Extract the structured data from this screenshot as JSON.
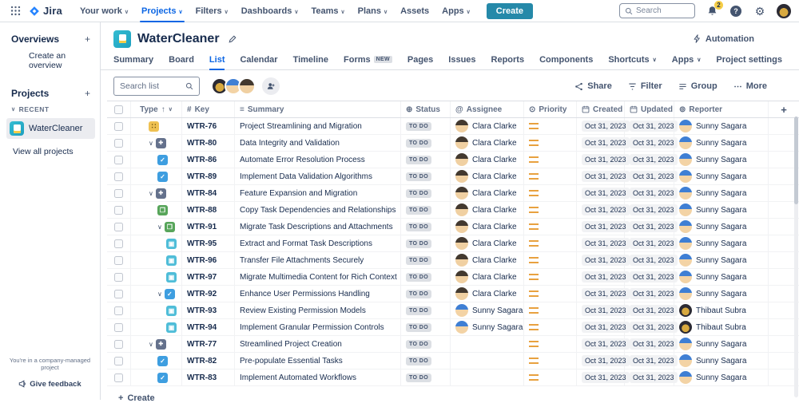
{
  "colors": {
    "create_button": "#2589A9",
    "badge_notification": "#F5CD47",
    "status_pill_bg": "#DCDFE4",
    "status_pill_text": "#44546F",
    "priority_medium": "#E8A13F",
    "type_task": "#3E9EE0",
    "type_story": "#57A55A",
    "type_subtask": "#4FBDD8",
    "type_feature": "#64718C",
    "type_project": "#EFC152"
  },
  "top_nav": {
    "logo_text": "Jira",
    "items": [
      {
        "label": "Your work",
        "dropdown": true
      },
      {
        "label": "Projects",
        "dropdown": true
      },
      {
        "label": "Filters",
        "dropdown": true
      },
      {
        "label": "Dashboards",
        "dropdown": true
      },
      {
        "label": "Teams",
        "dropdown": true
      },
      {
        "label": "Plans",
        "dropdown": true
      },
      {
        "label": "Assets",
        "dropdown": false
      },
      {
        "label": "Apps",
        "dropdown": true
      }
    ],
    "active_item": "Projects",
    "create_label": "Create",
    "search_placeholder": "Search",
    "notification_count": "2",
    "help_glyph": "?"
  },
  "sidebar": {
    "overviews_label": "Overviews",
    "create_overview_label": "Create an overview",
    "projects_label": "Projects",
    "recent_label": "RECENT",
    "project_name": "WaterCleaner",
    "view_all_label": "View all projects",
    "footer_note": "You're in a company-managed project",
    "feedback_label": "Give feedback"
  },
  "header": {
    "title": "WaterCleaner",
    "automation_label": "Automation"
  },
  "tabs": [
    {
      "label": "Summary"
    },
    {
      "label": "Board"
    },
    {
      "label": "List",
      "active": true
    },
    {
      "label": "Calendar"
    },
    {
      "label": "Timeline"
    },
    {
      "label": "Forms",
      "badge": "NEW"
    },
    {
      "label": "Pages"
    },
    {
      "label": "Issues"
    },
    {
      "label": "Reports"
    },
    {
      "label": "Components"
    },
    {
      "label": "Shortcuts",
      "dropdown": true
    },
    {
      "label": "Apps",
      "dropdown": true
    },
    {
      "label": "Project settings"
    }
  ],
  "toolbar": {
    "search_placeholder": "Search list",
    "avatars": [
      "Thibaut Subra",
      "Sunny Sagara",
      "Clara Clarke"
    ],
    "share_label": "Share",
    "filter_label": "Filter",
    "group_label": "Group",
    "more_label": "More"
  },
  "people": {
    "Clara Clarke": "clara",
    "Sunny Sagara": "sunny",
    "Thibaut Subra": "thibaut"
  },
  "table": {
    "columns": {
      "type": "Type",
      "key": "Key",
      "summary": "Summary",
      "status": "Status",
      "assignee": "Assignee",
      "priority": "Priority",
      "created": "Created",
      "updated": "Updated",
      "reporter": "Reporter"
    },
    "create_label": "Create",
    "rows": [
      {
        "type": "project",
        "indent": 0,
        "chevron": false,
        "key": "WTR-76",
        "summary": "Project Streamlining and Migration",
        "status": "TO DO",
        "assignee": "Clara Clarke",
        "priority": "Medium",
        "created": "Oct 31, 2023",
        "updated": "Oct 31, 2023",
        "reporter": "Sunny Sagara"
      },
      {
        "type": "feature",
        "indent": 0,
        "chevron": true,
        "key": "WTR-80",
        "summary": "Data Integrity and Validation",
        "status": "TO DO",
        "assignee": "Clara Clarke",
        "priority": "Medium",
        "created": "Oct 31, 2023",
        "updated": "Oct 31, 2023",
        "reporter": "Sunny Sagara"
      },
      {
        "type": "task",
        "indent": 1,
        "chevron": false,
        "key": "WTR-86",
        "summary": "Automate Error Resolution Process",
        "status": "TO DO",
        "assignee": "Clara Clarke",
        "priority": "Medium",
        "created": "Oct 31, 2023",
        "updated": "Oct 31, 2023",
        "reporter": "Sunny Sagara"
      },
      {
        "type": "task",
        "indent": 1,
        "chevron": false,
        "key": "WTR-89",
        "summary": "Implement Data Validation Algorithms",
        "status": "TO DO",
        "assignee": "Clara Clarke",
        "priority": "Medium",
        "created": "Oct 31, 2023",
        "updated": "Oct 31, 2023",
        "reporter": "Sunny Sagara"
      },
      {
        "type": "feature",
        "indent": 0,
        "chevron": true,
        "key": "WTR-84",
        "summary": "Feature Expansion and Migration",
        "status": "TO DO",
        "assignee": "Clara Clarke",
        "priority": "Medium",
        "created": "Oct 31, 2023",
        "updated": "Oct 31, 2023",
        "reporter": "Sunny Sagara"
      },
      {
        "type": "story",
        "indent": 1,
        "chevron": false,
        "key": "WTR-88",
        "summary": "Copy Task Dependencies and Relationships",
        "status": "TO DO",
        "assignee": "Clara Clarke",
        "priority": "Medium",
        "created": "Oct 31, 2023",
        "updated": "Oct 31, 2023",
        "reporter": "Sunny Sagara"
      },
      {
        "type": "story",
        "indent": 1,
        "chevron": true,
        "key": "WTR-91",
        "summary": "Migrate Task Descriptions and Attachments",
        "status": "TO DO",
        "assignee": "Clara Clarke",
        "priority": "Medium",
        "created": "Oct 31, 2023",
        "updated": "Oct 31, 2023",
        "reporter": "Sunny Sagara"
      },
      {
        "type": "subtask",
        "indent": 2,
        "chevron": false,
        "key": "WTR-95",
        "summary": "Extract and Format Task Descriptions",
        "status": "TO DO",
        "assignee": "Clara Clarke",
        "priority": "Medium",
        "created": "Oct 31, 2023",
        "updated": "Oct 31, 2023",
        "reporter": "Sunny Sagara"
      },
      {
        "type": "subtask",
        "indent": 2,
        "chevron": false,
        "key": "WTR-96",
        "summary": "Transfer File Attachments Securely",
        "status": "TO DO",
        "assignee": "Clara Clarke",
        "priority": "Medium",
        "created": "Oct 31, 2023",
        "updated": "Oct 31, 2023",
        "reporter": "Sunny Sagara"
      },
      {
        "type": "subtask",
        "indent": 2,
        "chevron": false,
        "key": "WTR-97",
        "summary": "Migrate Multimedia Content for Rich Context",
        "status": "TO DO",
        "assignee": "Clara Clarke",
        "priority": "Medium",
        "created": "Oct 31, 2023",
        "updated": "Oct 31, 2023",
        "reporter": "Sunny Sagara"
      },
      {
        "type": "task",
        "indent": 1,
        "chevron": true,
        "key": "WTR-92",
        "summary": "Enhance User Permissions Handling",
        "status": "TO DO",
        "assignee": "Clara Clarke",
        "priority": "Medium",
        "created": "Oct 31, 2023",
        "updated": "Oct 31, 2023",
        "reporter": "Sunny Sagara"
      },
      {
        "type": "subtask",
        "indent": 2,
        "chevron": false,
        "key": "WTR-93",
        "summary": "Review Existing Permission Models",
        "status": "TO DO",
        "assignee": "Sunny Sagara",
        "priority": "Medium",
        "created": "Oct 31, 2023",
        "updated": "Oct 31, 2023",
        "reporter": "Thibaut Subra"
      },
      {
        "type": "subtask",
        "indent": 2,
        "chevron": false,
        "key": "WTR-94",
        "summary": "Implement Granular Permission Controls",
        "status": "TO DO",
        "assignee": "Sunny Sagara",
        "priority": "Medium",
        "created": "Oct 31, 2023",
        "updated": "Oct 31, 2023",
        "reporter": "Thibaut Subra"
      },
      {
        "type": "feature",
        "indent": 0,
        "chevron": true,
        "key": "WTR-77",
        "summary": "Streamlined Project Creation",
        "status": "TO DO",
        "assignee": "",
        "priority": "Medium",
        "created": "Oct 31, 2023",
        "updated": "Oct 31, 2023",
        "reporter": "Sunny Sagara"
      },
      {
        "type": "task",
        "indent": 1,
        "chevron": false,
        "key": "WTR-82",
        "summary": "Pre-populate Essential Tasks",
        "status": "TO DO",
        "assignee": "",
        "priority": "Medium",
        "created": "Oct 31, 2023",
        "updated": "Oct 31, 2023",
        "reporter": "Sunny Sagara"
      },
      {
        "type": "task",
        "indent": 1,
        "chevron": false,
        "key": "WTR-83",
        "summary": "Implement Automated Workflows",
        "status": "TO DO",
        "assignee": "",
        "priority": "Medium",
        "created": "Oct 31, 2023",
        "updated": "Oct 31, 2023",
        "reporter": "Sunny Sagara"
      }
    ]
  }
}
